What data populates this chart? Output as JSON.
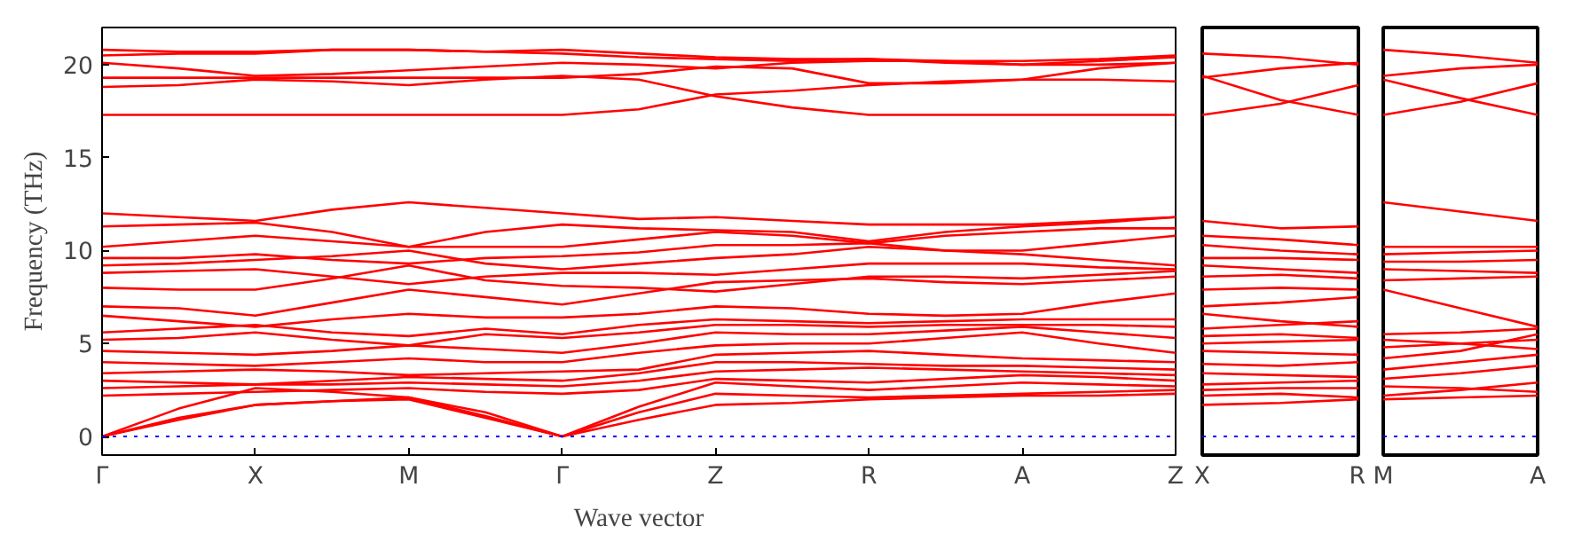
{
  "chart_data": [
    {
      "type": "line",
      "xlabel": "Wave vector",
      "ylabel": "Frequency (THz)",
      "color": "#ff0000",
      "ylim": [
        -1,
        22
      ],
      "categories": [
        "Γ",
        null,
        "X",
        null,
        "M",
        null,
        "Γ",
        null,
        "Z",
        null,
        "R",
        null,
        "A",
        null,
        "Z"
      ],
      "yticks": [
        0,
        5,
        10,
        15,
        20
      ],
      "grid": false,
      "ref_lines": [
        {
          "axis": "y",
          "value": 0,
          "color": "#0000ff",
          "line_style": "dotted"
        }
      ],
      "series": [
        {
          "values": [
            0,
            0.9,
            1.7,
            1.9,
            2.0,
            1.0,
            0,
            0.9,
            1.7,
            1.8,
            2.0,
            2.1,
            2.2,
            2.2,
            2.3
          ]
        },
        {
          "values": [
            0,
            1.0,
            1.7,
            1.9,
            2.1,
            1.1,
            0,
            1.3,
            2.3,
            2.2,
            2.1,
            2.2,
            2.3,
            2.4,
            2.5
          ]
        },
        {
          "values": [
            0,
            1.5,
            2.6,
            2.4,
            2.1,
            1.3,
            0,
            1.6,
            2.9,
            2.7,
            2.5,
            2.7,
            2.9,
            2.8,
            2.7
          ]
        },
        {
          "values": [
            2.2,
            2.3,
            2.4,
            2.5,
            2.6,
            2.4,
            2.3,
            2.5,
            3.1,
            3.0,
            2.9,
            3.1,
            3.3,
            3.2,
            3.0
          ]
        },
        {
          "values": [
            2.6,
            2.7,
            2.8,
            2.8,
            2.9,
            2.8,
            2.7,
            3.0,
            3.5,
            3.6,
            3.7,
            3.6,
            3.5,
            3.4,
            3.3
          ]
        },
        {
          "values": [
            3.0,
            2.9,
            2.8,
            3.0,
            3.2,
            3.1,
            3.0,
            3.4,
            4.0,
            4.0,
            3.9,
            3.8,
            3.8,
            3.7,
            3.6
          ]
        },
        {
          "values": [
            3.4,
            3.5,
            3.6,
            3.5,
            3.3,
            3.4,
            3.5,
            3.6,
            4.4,
            4.5,
            4.6,
            4.4,
            4.2,
            4.1,
            4.0
          ]
        },
        {
          "values": [
            4.0,
            3.9,
            3.8,
            4.0,
            4.2,
            4.0,
            4.0,
            4.5,
            4.9,
            5.0,
            5.0,
            5.3,
            5.6,
            5.0,
            4.5
          ]
        },
        {
          "values": [
            4.6,
            4.5,
            4.4,
            4.6,
            4.9,
            4.7,
            4.5,
            5.0,
            5.6,
            5.5,
            5.5,
            5.7,
            5.9,
            5.6,
            5.3
          ]
        },
        {
          "values": [
            5.2,
            5.3,
            5.6,
            5.2,
            4.9,
            5.5,
            5.3,
            5.6,
            6.0,
            6.0,
            5.9,
            6.0,
            6.0,
            6.0,
            5.9
          ]
        },
        {
          "values": [
            5.6,
            5.8,
            6.0,
            5.6,
            5.4,
            5.8,
            5.5,
            6.0,
            6.3,
            6.2,
            6.1,
            6.2,
            6.3,
            6.3,
            6.3
          ]
        },
        {
          "values": [
            6.5,
            6.2,
            5.9,
            6.3,
            6.6,
            6.4,
            6.4,
            6.6,
            7.0,
            6.9,
            6.6,
            6.5,
            6.6,
            7.2,
            7.7
          ]
        },
        {
          "values": [
            7.0,
            6.9,
            6.5,
            7.2,
            7.9,
            7.5,
            7.1,
            7.7,
            8.3,
            8.4,
            8.5,
            8.3,
            8.2,
            8.4,
            8.6
          ]
        },
        {
          "values": [
            8.0,
            7.9,
            7.9,
            8.5,
            9.2,
            8.4,
            8.1,
            8.0,
            7.8,
            8.2,
            8.6,
            8.6,
            8.5,
            8.7,
            8.9
          ]
        },
        {
          "values": [
            8.8,
            8.9,
            9.0,
            8.6,
            8.2,
            8.6,
            8.8,
            8.8,
            8.7,
            9.0,
            9.3,
            9.3,
            9.3,
            9.1,
            9.0
          ]
        },
        {
          "values": [
            9.2,
            9.3,
            9.5,
            9.7,
            10.0,
            9.3,
            9.0,
            9.3,
            9.6,
            9.8,
            10.2,
            10.0,
            9.8,
            9.5,
            9.2
          ]
        },
        {
          "values": [
            9.6,
            9.6,
            9.8,
            9.5,
            9.3,
            9.6,
            9.7,
            9.9,
            10.3,
            10.3,
            10.4,
            10.0,
            10.0,
            10.4,
            10.8
          ]
        },
        {
          "values": [
            10.2,
            10.5,
            10.8,
            10.5,
            10.2,
            10.2,
            10.2,
            10.6,
            11.0,
            10.8,
            10.4,
            10.8,
            11.0,
            11.2,
            11.2
          ]
        },
        {
          "values": [
            11.3,
            11.4,
            11.5,
            11.0,
            10.2,
            11.0,
            11.4,
            11.2,
            11.1,
            11.0,
            10.5,
            11.0,
            11.3,
            11.5,
            11.8
          ]
        },
        {
          "values": [
            12.0,
            11.8,
            11.6,
            12.2,
            12.6,
            12.3,
            12.0,
            11.7,
            11.8,
            11.6,
            11.4,
            11.4,
            11.4,
            11.6,
            11.8
          ]
        },
        {
          "values": [
            17.3,
            17.3,
            17.3,
            17.3,
            17.3,
            17.3,
            17.3,
            17.6,
            18.4,
            18.6,
            18.9,
            19.1,
            19.2,
            19.2,
            19.1
          ]
        },
        {
          "values": [
            18.8,
            18.9,
            19.2,
            19.1,
            18.9,
            19.2,
            19.4,
            19.2,
            18.3,
            17.7,
            17.3,
            17.3,
            17.3,
            17.3,
            17.3
          ]
        },
        {
          "values": [
            19.3,
            19.3,
            19.3,
            19.3,
            19.3,
            19.3,
            19.3,
            19.5,
            19.9,
            19.8,
            19.0,
            19.0,
            19.2,
            19.8,
            20.1
          ]
        },
        {
          "values": [
            20.1,
            19.8,
            19.4,
            19.5,
            19.7,
            19.9,
            20.1,
            20.0,
            19.8,
            20.1,
            20.2,
            20.2,
            20.0,
            20.0,
            20.1
          ]
        },
        {
          "values": [
            20.5,
            20.6,
            20.6,
            20.8,
            20.8,
            20.7,
            20.6,
            20.4,
            20.3,
            20.2,
            20.3,
            20.1,
            20.0,
            20.2,
            20.4
          ]
        },
        {
          "values": [
            20.8,
            20.7,
            20.7,
            20.8,
            20.8,
            20.7,
            20.8,
            20.6,
            20.4,
            20.3,
            20.3,
            20.2,
            20.2,
            20.3,
            20.5
          ]
        }
      ]
    },
    {
      "type": "line",
      "color": "#ff0000",
      "ylim": [
        -1,
        22
      ],
      "tick_labels": "x",
      "grid": false,
      "categories": [
        "X",
        null,
        "R"
      ],
      "yticks": [
        0,
        5,
        10,
        15,
        20
      ],
      "ref_lines": [
        {
          "axis": "y",
          "value": 0,
          "color": "#0000ff",
          "line_style": "dotted"
        }
      ],
      "series": [
        {
          "values": [
            1.7,
            1.8,
            2.0
          ]
        },
        {
          "values": [
            2.2,
            2.3,
            2.1
          ]
        },
        {
          "values": [
            2.5,
            2.6,
            2.6
          ]
        },
        {
          "values": [
            2.8,
            2.9,
            3.0
          ]
        },
        {
          "values": [
            3.4,
            3.3,
            3.2
          ]
        },
        {
          "values": [
            3.9,
            3.8,
            4.0
          ]
        },
        {
          "values": [
            4.6,
            4.5,
            4.4
          ]
        },
        {
          "values": [
            5.0,
            5.1,
            5.2
          ]
        },
        {
          "values": [
            5.4,
            5.5,
            5.3
          ]
        },
        {
          "values": [
            5.8,
            6.0,
            6.2
          ]
        },
        {
          "values": [
            6.6,
            6.2,
            5.9
          ]
        },
        {
          "values": [
            7.0,
            7.2,
            7.5
          ]
        },
        {
          "values": [
            7.9,
            8.0,
            7.9
          ]
        },
        {
          "values": [
            8.6,
            8.7,
            8.5
          ]
        },
        {
          "values": [
            9.2,
            9.0,
            8.8
          ]
        },
        {
          "values": [
            9.6,
            9.6,
            9.5
          ]
        },
        {
          "values": [
            10.3,
            10.0,
            9.8
          ]
        },
        {
          "values": [
            10.8,
            10.6,
            10.3
          ]
        },
        {
          "values": [
            11.6,
            11.2,
            11.3
          ]
        },
        {
          "values": [
            17.3,
            17.9,
            18.9
          ]
        },
        {
          "values": [
            19.4,
            18.1,
            17.3
          ]
        },
        {
          "values": [
            19.3,
            19.8,
            20.1
          ]
        },
        {
          "values": [
            20.6,
            20.4,
            20.0
          ]
        }
      ]
    },
    {
      "type": "line",
      "color": "#ff0000",
      "ylim": [
        -1,
        22
      ],
      "tick_labels": "x",
      "grid": false,
      "categories": [
        "M",
        null,
        "A"
      ],
      "yticks": [
        0,
        5,
        10,
        15,
        20
      ],
      "ref_lines": [
        {
          "axis": "y",
          "value": 0,
          "color": "#0000ff",
          "line_style": "dotted"
        }
      ],
      "series": [
        {
          "values": [
            2.0,
            2.1,
            2.2
          ]
        },
        {
          "values": [
            2.2,
            2.5,
            2.9
          ]
        },
        {
          "values": [
            2.7,
            2.6,
            2.4
          ]
        },
        {
          "values": [
            3.1,
            3.4,
            3.8
          ]
        },
        {
          "values": [
            3.6,
            4.0,
            4.4
          ]
        },
        {
          "values": [
            4.2,
            4.6,
            5.5
          ]
        },
        {
          "values": [
            4.8,
            5.0,
            5.2
          ]
        },
        {
          "values": [
            5.2,
            5.0,
            4.7
          ]
        },
        {
          "values": [
            5.5,
            5.6,
            5.8
          ]
        },
        {
          "values": [
            7.9,
            6.9,
            5.9
          ]
        },
        {
          "values": [
            8.4,
            8.5,
            8.6
          ]
        },
        {
          "values": [
            9.0,
            8.9,
            8.8
          ]
        },
        {
          "values": [
            9.4,
            9.4,
            9.5
          ]
        },
        {
          "values": [
            9.8,
            9.9,
            10.0
          ]
        },
        {
          "values": [
            10.2,
            10.2,
            10.2
          ]
        },
        {
          "values": [
            12.6,
            12.1,
            11.6
          ]
        },
        {
          "values": [
            17.3,
            18.0,
            19.0
          ]
        },
        {
          "values": [
            19.2,
            18.2,
            17.3
          ]
        },
        {
          "values": [
            19.4,
            19.8,
            20.0
          ]
        },
        {
          "values": [
            20.8,
            20.5,
            20.1
          ]
        }
      ]
    }
  ]
}
